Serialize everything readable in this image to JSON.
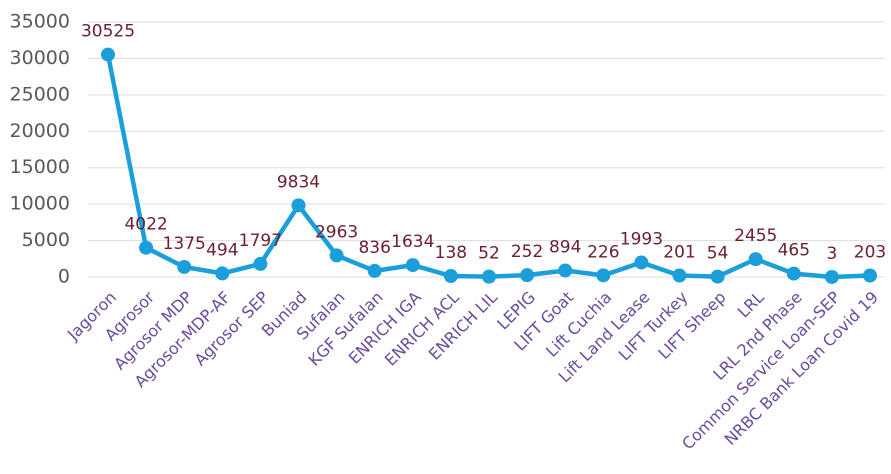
{
  "chart_data": {
    "type": "line",
    "categories": [
      "Jagoron",
      "Agrosor",
      "Agrosor MDP",
      "Agrosor-MDP-AF",
      "Agrosor SEP",
      "Buniad",
      "Sufalan",
      "KGF Sufalan",
      "ENRICH IGA",
      "ENRICH ACL",
      "ENRICH LIL",
      "LEPIG",
      "LIFT Goat",
      "Lift Cuchia",
      "Lift Land Lease",
      "LIFT Turkey",
      "LIFT Sheep",
      "LRL",
      "LRL 2nd Phase",
      "Common Service Loan-SEP",
      "NRBC Bank Loan Covid 19"
    ],
    "values": [
      30525,
      4022,
      1375,
      494,
      1797,
      9834,
      2963,
      836,
      1634,
      138,
      52,
      252,
      894,
      226,
      1993,
      201,
      54,
      2455,
      465,
      3,
      203
    ],
    "color": "#1a9fdb",
    "ylim": [
      0,
      35000
    ],
    "yticks": [
      0,
      5000,
      10000,
      15000,
      20000,
      25000,
      30000,
      35000
    ],
    "grid": true
  }
}
